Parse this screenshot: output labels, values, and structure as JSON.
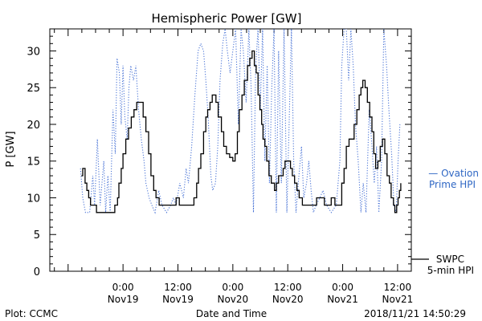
{
  "chart_data": {
    "type": "line",
    "title": "Hemispheric Power [GW]",
    "xlabel": "Date and Time",
    "ylabel": "P [GW]",
    "xlim_hours": [
      -16,
      63
    ],
    "ylim": [
      0,
      33
    ],
    "yticks": [
      0,
      5,
      10,
      15,
      20,
      25,
      30
    ],
    "xticks": [
      {
        "h": 0,
        "time": "0:00",
        "date": "Nov19"
      },
      {
        "h": 12,
        "time": "12:00",
        "date": "Nov19"
      },
      {
        "h": 24,
        "time": "0:00",
        "date": "Nov20"
      },
      {
        "h": 36,
        "time": "12:00",
        "date": "Nov20"
      },
      {
        "h": 48,
        "time": "0:00",
        "date": "Nov21"
      },
      {
        "h": 60,
        "time": "12:00",
        "date": "Nov21"
      }
    ],
    "series": [
      {
        "name": "SWPC 5-min HPI",
        "style": "solid",
        "color": "#000000",
        "points": [
          [
            -9.1,
            13
          ],
          [
            -8.8,
            14
          ],
          [
            -8.3,
            12
          ],
          [
            -7.9,
            11
          ],
          [
            -7.5,
            10
          ],
          [
            -7.1,
            9
          ],
          [
            -6.3,
            9
          ],
          [
            -5.8,
            8
          ],
          [
            -4.5,
            8
          ],
          [
            -3.5,
            8
          ],
          [
            -2.4,
            8
          ],
          [
            -1.8,
            9
          ],
          [
            -1.2,
            10
          ],
          [
            -0.9,
            12
          ],
          [
            -0.4,
            14
          ],
          [
            0,
            16
          ],
          [
            0.6,
            18
          ],
          [
            1.2,
            19.5
          ],
          [
            1.8,
            21
          ],
          [
            2.4,
            22
          ],
          [
            3.0,
            23
          ],
          [
            3.8,
            23
          ],
          [
            4.4,
            21
          ],
          [
            5.0,
            19
          ],
          [
            5.6,
            16
          ],
          [
            6.1,
            13
          ],
          [
            6.7,
            11
          ],
          [
            7.2,
            10
          ],
          [
            7.9,
            9
          ],
          [
            9.5,
            9
          ],
          [
            11.3,
            9
          ],
          [
            11.6,
            10
          ],
          [
            12.3,
            9
          ],
          [
            13.3,
            9
          ],
          [
            14.6,
            9
          ],
          [
            15.5,
            10
          ],
          [
            16.1,
            12
          ],
          [
            16.5,
            14
          ],
          [
            17.0,
            16
          ],
          [
            17.6,
            19
          ],
          [
            18.1,
            21
          ],
          [
            18.5,
            22
          ],
          [
            19.0,
            23
          ],
          [
            19.5,
            24
          ],
          [
            20.3,
            23
          ],
          [
            20.8,
            21
          ],
          [
            21.5,
            19
          ],
          [
            22.0,
            17
          ],
          [
            22.6,
            16
          ],
          [
            23.3,
            15.5
          ],
          [
            24.0,
            15
          ],
          [
            24.5,
            16
          ],
          [
            25.0,
            19
          ],
          [
            25.4,
            22
          ],
          [
            26.0,
            24
          ],
          [
            26.5,
            26
          ],
          [
            27.2,
            28
          ],
          [
            27.7,
            29
          ],
          [
            28.2,
            30
          ],
          [
            28.7,
            28
          ],
          [
            29.1,
            27
          ],
          [
            29.5,
            24
          ],
          [
            29.9,
            22
          ],
          [
            30.3,
            20
          ],
          [
            30.6,
            18
          ],
          [
            31.0,
            17
          ],
          [
            31.4,
            15
          ],
          [
            31.9,
            13
          ],
          [
            32.4,
            12
          ],
          [
            33.1,
            11
          ],
          [
            33.5,
            12
          ],
          [
            34.0,
            13
          ],
          [
            34.5,
            13
          ],
          [
            35.0,
            14
          ],
          [
            35.4,
            15
          ],
          [
            36.2,
            15
          ],
          [
            36.6,
            14
          ],
          [
            37.0,
            13
          ],
          [
            37.5,
            12
          ],
          [
            38.0,
            11
          ],
          [
            38.5,
            10
          ],
          [
            39.2,
            9
          ],
          [
            40.2,
            9
          ],
          [
            41.5,
            9
          ],
          [
            42.3,
            10
          ],
          [
            43.2,
            10
          ],
          [
            44.0,
            9
          ],
          [
            45.0,
            9
          ],
          [
            45.5,
            10
          ],
          [
            46.3,
            9
          ],
          [
            47.4,
            9
          ],
          [
            47.8,
            12
          ],
          [
            48.3,
            14
          ],
          [
            48.8,
            17
          ],
          [
            49.4,
            18
          ],
          [
            50.0,
            18
          ],
          [
            50.5,
            20
          ],
          [
            51.1,
            22
          ],
          [
            51.6,
            24
          ],
          [
            52.0,
            25
          ],
          [
            52.4,
            26
          ],
          [
            52.9,
            25
          ],
          [
            53.4,
            23
          ],
          [
            53.9,
            21
          ],
          [
            54.4,
            19
          ],
          [
            54.8,
            16
          ],
          [
            55.2,
            14
          ],
          [
            55.7,
            15
          ],
          [
            56.2,
            17
          ],
          [
            56.7,
            18
          ],
          [
            57.2,
            16
          ],
          [
            57.7,
            13
          ],
          [
            58.2,
            12
          ],
          [
            58.6,
            10
          ],
          [
            59.1,
            9
          ],
          [
            59.4,
            8
          ],
          [
            59.8,
            9
          ],
          [
            60.1,
            10
          ],
          [
            60.4,
            11
          ],
          [
            60.7,
            12
          ]
        ]
      },
      {
        "name": "Ovation Prime HPI",
        "style": "dotted",
        "color": "#4a74d6",
        "points": [
          [
            -9.3,
            14
          ],
          [
            -8.8,
            10
          ],
          [
            -8.2,
            8
          ],
          [
            -7.3,
            8
          ],
          [
            -6.6,
            13
          ],
          [
            -6.2,
            9
          ],
          [
            -5.6,
            18
          ],
          [
            -5.0,
            9
          ],
          [
            -4.2,
            15
          ],
          [
            -3.8,
            8
          ],
          [
            -3.3,
            13
          ],
          [
            -2.8,
            8
          ],
          [
            -2.2,
            22
          ],
          [
            -1.7,
            16
          ],
          [
            -1.3,
            29
          ],
          [
            -0.8,
            27
          ],
          [
            -0.4,
            20
          ],
          [
            0,
            28
          ],
          [
            0.4,
            21
          ],
          [
            0.9,
            18
          ],
          [
            1.3,
            25
          ],
          [
            1.7,
            28
          ],
          [
            2.3,
            26
          ],
          [
            2.8,
            28
          ],
          [
            3.4,
            22
          ],
          [
            4.0,
            18
          ],
          [
            4.6,
            15
          ],
          [
            5.0,
            12
          ],
          [
            5.7,
            10
          ],
          [
            6.3,
            9
          ],
          [
            7.0,
            8
          ],
          [
            7.8,
            11
          ],
          [
            8.5,
            9
          ],
          [
            9.5,
            8
          ],
          [
            10.4,
            9
          ],
          [
            11.0,
            10
          ],
          [
            11.6,
            9
          ],
          [
            12.4,
            12
          ],
          [
            13.2,
            10
          ],
          [
            13.8,
            14
          ],
          [
            14.3,
            12
          ],
          [
            15.0,
            17
          ],
          [
            15.7,
            24
          ],
          [
            16.4,
            30
          ],
          [
            17.0,
            31
          ],
          [
            17.6,
            30
          ],
          [
            18.1,
            26
          ],
          [
            18.6,
            21
          ],
          [
            19.2,
            13
          ],
          [
            19.6,
            11
          ],
          [
            20.2,
            12
          ],
          [
            20.7,
            17
          ],
          [
            21.2,
            26
          ],
          [
            21.8,
            31
          ],
          [
            22.3,
            33
          ],
          [
            22.8,
            30
          ],
          [
            23.4,
            27
          ],
          [
            24.0,
            30
          ],
          [
            24.6,
            33
          ],
          [
            25.2,
            20
          ],
          [
            25.8,
            33
          ],
          [
            26.3,
            30
          ],
          [
            26.9,
            23
          ],
          [
            27.5,
            33
          ],
          [
            28.0,
            25
          ],
          [
            28.5,
            8
          ],
          [
            29.0,
            28
          ],
          [
            29.5,
            33
          ],
          [
            30.0,
            22
          ],
          [
            30.5,
            33
          ],
          [
            31.0,
            15
          ],
          [
            31.5,
            28
          ],
          [
            32.0,
            12
          ],
          [
            32.5,
            25
          ],
          [
            33.0,
            33
          ],
          [
            33.5,
            8
          ],
          [
            34.0,
            30
          ],
          [
            34.6,
            12
          ],
          [
            35.2,
            33
          ],
          [
            35.8,
            8
          ],
          [
            36.3,
            20
          ],
          [
            36.8,
            33
          ],
          [
            37.3,
            15
          ],
          [
            37.8,
            8
          ],
          [
            38.3,
            12
          ],
          [
            39.0,
            17
          ],
          [
            39.5,
            10
          ],
          [
            40.1,
            12
          ],
          [
            40.6,
            15
          ],
          [
            41.1,
            11
          ],
          [
            41.6,
            8
          ],
          [
            42.2,
            9
          ],
          [
            43.0,
            10
          ],
          [
            43.7,
            11
          ],
          [
            44.5,
            9
          ],
          [
            45.5,
            8
          ],
          [
            46.6,
            9
          ],
          [
            47.4,
            15
          ],
          [
            47.8,
            28
          ],
          [
            48.3,
            33
          ],
          [
            48.8,
            33
          ],
          [
            49.3,
            26
          ],
          [
            49.8,
            33
          ],
          [
            50.3,
            28
          ],
          [
            50.8,
            20
          ],
          [
            51.4,
            15
          ],
          [
            52.0,
            8
          ],
          [
            52.5,
            12
          ],
          [
            53.1,
            8
          ],
          [
            53.8,
            22
          ],
          [
            54.3,
            18
          ],
          [
            54.9,
            12
          ],
          [
            55.4,
            17
          ],
          [
            55.9,
            8
          ],
          [
            56.5,
            15
          ],
          [
            57.0,
            33
          ],
          [
            57.6,
            28
          ],
          [
            58.1,
            22
          ],
          [
            58.7,
            16
          ],
          [
            59.2,
            9
          ],
          [
            59.7,
            8
          ],
          [
            60.1,
            15
          ],
          [
            60.5,
            20
          ]
        ]
      }
    ],
    "legend": [
      {
        "lines": [
          "— Ovation",
          "Prime HPI"
        ],
        "color": "#2f67c4"
      },
      {
        "lines": [
          "SWPC",
          "5-min HPI"
        ],
        "color": "#000000"
      }
    ],
    "footer": {
      "left": "Plot: CCMC",
      "center": "Date and Time",
      "right": "2018/11/21 14:50:29"
    }
  }
}
